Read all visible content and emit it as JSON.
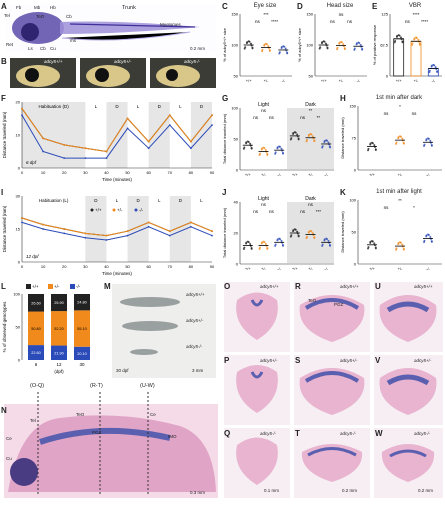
{
  "panels": {
    "A": {
      "label": "A",
      "annotations": [
        "Fb",
        "Mb",
        "Hb",
        "Tel",
        "Ret",
        "TeO",
        "Cb",
        "Ls",
        "Cb",
        "Cu",
        "ms",
        "Trunk",
        "Myotomes"
      ],
      "scale": "0.2 mm"
    },
    "B": {
      "label": "B",
      "genotypes": [
        "adcy5+/+",
        "adcy5+/-",
        "adcy5-/-"
      ]
    },
    "C": {
      "label": "C",
      "title": "Eye size",
      "ylabel": "% of adcy5+/+ size",
      "sig": [
        "***",
        "ns",
        "****"
      ]
    },
    "D": {
      "label": "D",
      "title": "Head size",
      "ylabel": "% of adcy5+/+ size",
      "sig": [
        "ns",
        "ns",
        "ns"
      ]
    },
    "E": {
      "label": "E",
      "title": "VBR",
      "ylabel": "% of positive response",
      "sig": [
        "****",
        "ns",
        "****"
      ]
    },
    "F": {
      "label": "F",
      "ylabel": "Distance traveled (mm)",
      "xlabel": "Time (minutes)",
      "stage": "6 dpf",
      "phases": [
        "Habituation (D)",
        "L",
        "D",
        "L",
        "D",
        "L",
        "D"
      ]
    },
    "G": {
      "label": "G",
      "ylabel": "Total distance traveled (mm)",
      "groups": [
        "Light",
        "Dark"
      ],
      "sig": [
        "ns",
        "ns",
        "ns",
        "**",
        "ns",
        "**"
      ]
    },
    "H": {
      "label": "H",
      "title": "1st min after dark",
      "ylabel": "Distance traveled (mm)",
      "sig": [
        "*",
        "ns",
        "ns"
      ]
    },
    "I": {
      "label": "I",
      "ylabel": "Distance traveled (mm)",
      "xlabel": "Time (minutes)",
      "stage": "12 dpf",
      "phases": [
        "Habituation (L)",
        "D",
        "L",
        "D",
        "L",
        "D",
        "L"
      ],
      "legend": [
        "+/+",
        "+/-",
        "-/-"
      ]
    },
    "J": {
      "label": "J",
      "ylabel": "Total distance traveled (mm)",
      "groups": [
        "Light",
        "Dark"
      ],
      "sig": [
        "ns",
        "ns",
        "ns",
        "ns",
        "ns",
        "***"
      ]
    },
    "K": {
      "label": "K",
      "title": "1st min after light",
      "ylabel": "Distance traveled (mm)",
      "sig": [
        "**",
        "ns",
        "*"
      ]
    },
    "L": {
      "label": "L",
      "ylabel": "% of observed genotypes",
      "xlabel": "(dpf)",
      "legend": [
        "+/+",
        "+/-",
        "-/-"
      ]
    },
    "M": {
      "label": "M",
      "genotypes": [
        "adcy5+/+",
        "adcy5+/-",
        "adcy5-/-"
      ],
      "stage": "30 dpf",
      "scale": "3 mm"
    },
    "N": {
      "label": "N",
      "regions": [
        "(O-Q)",
        "(R-T)",
        "(U-W)",
        "Ce",
        "Tel",
        "TeO",
        "PGZ",
        "Ce",
        "IMO",
        "Cu"
      ],
      "scale": "0.3 mm"
    },
    "O": {
      "label": "O",
      "genotype": "adcy5+/+"
    },
    "P": {
      "label": "P",
      "genotype": "adcy5+/-"
    },
    "Q": {
      "label": "Q",
      "genotype": "adcy5-/-",
      "scale": "0.1 mm"
    },
    "R": {
      "label": "R",
      "genotype": "adcy5+/+",
      "regions": [
        "TeO",
        "PGZ"
      ]
    },
    "S": {
      "label": "S",
      "genotype": "adcy5+/-"
    },
    "T": {
      "label": "T",
      "genotype": "adcy5-/-",
      "scale": "0.2 mm"
    },
    "U": {
      "label": "U",
      "genotype": "adcy5+/+"
    },
    "V": {
      "label": "V",
      "genotype": "adcy5+/-"
    },
    "W": {
      "label": "W",
      "genotype": "adcy5-/-",
      "scale": "0.2 mm"
    }
  },
  "chart_data": [
    {
      "id": "C",
      "type": "scatter",
      "categories": [
        "+/+",
        "+/-",
        "-/-"
      ],
      "values": [
        100,
        96,
        92
      ],
      "ylim": [
        50,
        150
      ]
    },
    {
      "id": "D",
      "type": "scatter",
      "categories": [
        "+/+",
        "+/-",
        "-/-"
      ],
      "values": [
        100,
        99,
        98
      ],
      "ylim": [
        50,
        150
      ]
    },
    {
      "id": "E",
      "type": "bar",
      "categories": [
        "+/+",
        "+/-",
        "-/-"
      ],
      "values": [
        75,
        70,
        15
      ],
      "ylim": [
        0,
        125
      ]
    },
    {
      "id": "F",
      "type": "line",
      "x": [
        0,
        10,
        20,
        30,
        40,
        50,
        60,
        70,
        80,
        90
      ],
      "xlim": [
        0,
        90
      ],
      "ylim": [
        0,
        20
      ],
      "series": [
        {
          "name": "+/+",
          "values": [
            18,
            9,
            7,
            6,
            5,
            15,
            8,
            16,
            8,
            16
          ]
        },
        {
          "name": "+/-",
          "values": [
            18,
            9,
            7,
            6,
            5,
            15,
            8,
            16,
            8,
            16
          ]
        },
        {
          "name": "-/-",
          "values": [
            16,
            5,
            3,
            3,
            3,
            12,
            6,
            13,
            6,
            13
          ]
        }
      ]
    },
    {
      "id": "G",
      "type": "scatter",
      "groups": [
        "Light",
        "Dark"
      ],
      "categories": [
        "+/+",
        "+/-",
        "-/-"
      ],
      "values": [
        [
          40,
          30,
          32
        ],
        [
          55,
          52,
          42
        ]
      ],
      "ylim": [
        0,
        100
      ]
    },
    {
      "id": "H",
      "type": "scatter",
      "categories": [
        "+/+",
        "+/-",
        "-/-"
      ],
      "values": [
        55,
        70,
        65
      ],
      "ylim": [
        0,
        150
      ]
    },
    {
      "id": "I",
      "type": "line",
      "x": [
        0,
        10,
        20,
        30,
        40,
        50,
        60,
        70,
        80,
        90
      ],
      "xlim": [
        0,
        90
      ],
      "ylim": [
        0,
        30
      ],
      "series": [
        {
          "name": "+/+",
          "values": [
            20,
            17,
            15,
            13,
            12,
            14,
            18,
            14,
            18,
            14
          ]
        },
        {
          "name": "+/-",
          "values": [
            20,
            17,
            15,
            13,
            12,
            14,
            18,
            14,
            18,
            14
          ]
        },
        {
          "name": "-/-",
          "values": [
            18,
            15,
            13,
            11,
            10,
            12,
            16,
            12,
            16,
            12
          ]
        }
      ]
    },
    {
      "id": "J",
      "type": "scatter",
      "groups": [
        "Light",
        "Dark"
      ],
      "categories": [
        "+/+",
        "+/-",
        "-/-"
      ],
      "values": [
        [
          12,
          12,
          14
        ],
        [
          20,
          19,
          14
        ]
      ],
      "ylim": [
        0,
        40
      ]
    },
    {
      "id": "K",
      "type": "scatter",
      "categories": [
        "+/+",
        "+/-",
        "-/-"
      ],
      "values": [
        30,
        28,
        40
      ],
      "ylim": [
        0,
        100
      ]
    },
    {
      "id": "L",
      "type": "bar",
      "categories": [
        "6",
        "12",
        "30"
      ],
      "series": [
        {
          "name": "+/+",
          "values": [
            26.6,
            25.9,
            24.8
          ]
        },
        {
          "name": "+/-",
          "values": [
            50.8,
            52.2,
            55.1
          ]
        },
        {
          "name": "-/-",
          "values": [
            22.6,
            21.9,
            20.1
          ]
        }
      ]
    }
  ],
  "L_labels": [
    [
      "26.60",
      "50.80",
      "22.60"
    ],
    [
      "25.90",
      "52.20",
      "21.90"
    ],
    [
      "24.80",
      "55.10",
      "20.10"
    ]
  ],
  "colors": {
    "wt": "#222222",
    "het": "#f08a1c",
    "ko": "#2b4bb8",
    "gray": "#c8c8c8",
    "he_pink": "#e8b4cf",
    "he_blue": "#5b5fb0"
  }
}
